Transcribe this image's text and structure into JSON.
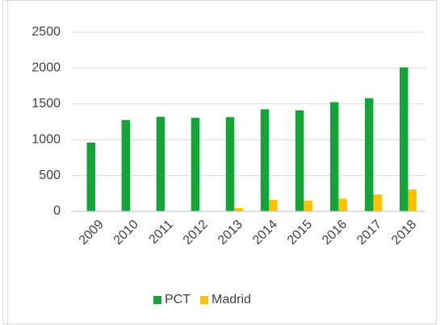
{
  "chart_data": {
    "type": "bar",
    "categories": [
      "2009",
      "2010",
      "2011",
      "2012",
      "2013",
      "2014",
      "2015",
      "2016",
      "2017",
      "2018"
    ],
    "series": [
      {
        "name": "PCT",
        "color": "#13a538",
        "values": [
          960,
          1275,
          1320,
          1305,
          1315,
          1425,
          1410,
          1525,
          1580,
          2010
        ]
      },
      {
        "name": "Madrid",
        "color": "#ffc000",
        "values": [
          0,
          0,
          0,
          5,
          45,
          160,
          150,
          175,
          235,
          305
        ]
      }
    ],
    "ylim": [
      0,
      2500
    ],
    "yticks": [
      0,
      500,
      1000,
      1500,
      2000,
      2500
    ],
    "grid": true,
    "legend": "bottom"
  }
}
